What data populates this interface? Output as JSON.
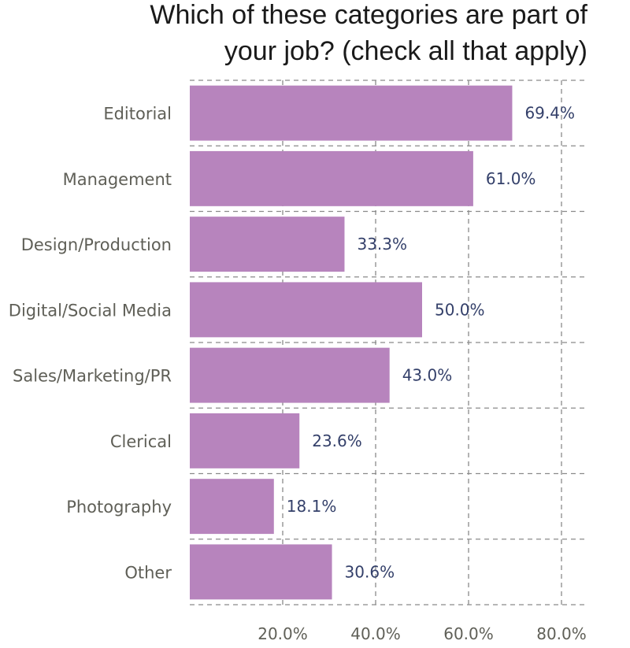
{
  "chart_data": {
    "type": "bar",
    "orientation": "horizontal",
    "title": [
      "Which of these categories are part of",
      "your job? (check all that apply)"
    ],
    "categories": [
      "Editorial",
      "Management",
      "Design/Production",
      "Digital/Social Media",
      "Sales/Marketing/PR",
      "Clerical",
      "Photography",
      "Other"
    ],
    "values": [
      69.4,
      61.0,
      33.3,
      50.0,
      43.0,
      23.6,
      18.1,
      30.6
    ],
    "value_labels": [
      "69.4%",
      "61.0%",
      "33.3%",
      "50.0%",
      "43.0%",
      "23.6%",
      "18.1%",
      "30.6%"
    ],
    "xticks": [
      20,
      40,
      60,
      80
    ],
    "xtick_labels": [
      "20.0%",
      "40.0%",
      "60.0%",
      "80.0%"
    ],
    "xlim": [
      0,
      85
    ],
    "xlabel": "",
    "ylabel": "",
    "grid": true,
    "bar_color": "#b784bd",
    "value_label_color": "#34406a"
  }
}
